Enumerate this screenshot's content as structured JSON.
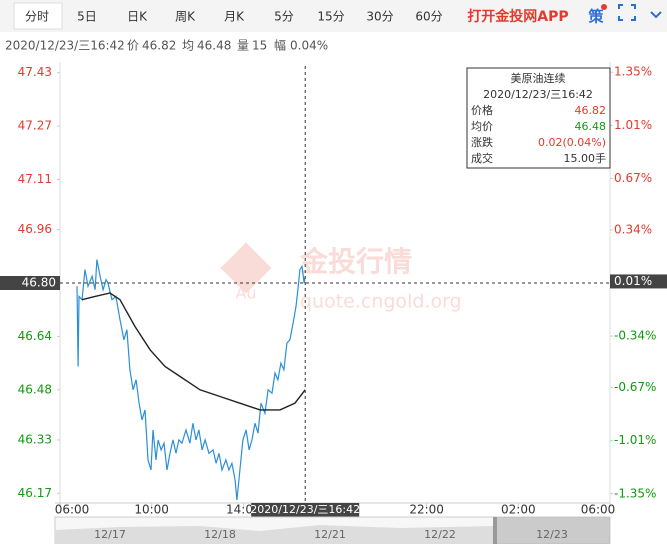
{
  "toolbar": {
    "tabs": [
      "分时",
      "5日",
      "日K",
      "周K",
      "月K",
      "5分",
      "15分",
      "30分",
      "60分"
    ],
    "app_link": "打开金投网APP",
    "strategy": "策"
  },
  "info": {
    "datetime": "2020/12/23/三16:42",
    "price_label": "价",
    "price": 46.82,
    "avg_label": "均",
    "avg": 46.48,
    "volume_label": "量",
    "volume": 15,
    "range_label": "幅",
    "range": "0.04%"
  },
  "tooltip": {
    "title": "美原油连续",
    "datetime": "2020/12/23/三16:42",
    "rows": [
      [
        "价格",
        "46.82"
      ],
      [
        "均价",
        "46.48"
      ],
      [
        "涨跌",
        "0.02(0.04%)"
      ],
      [
        "成交",
        "15.00手"
      ]
    ]
  },
  "watermark": {
    "logo": "Au",
    "brand": "金投行情",
    "url": "quote.cngold.org"
  },
  "navigator": {
    "dates": [
      "12/17",
      "12/18",
      "12/21",
      "12/22",
      "12/23"
    ]
  },
  "chart_data": {
    "type": "line",
    "xlim": [
      0,
      24
    ],
    "xticks": [
      {
        "value": 0,
        "label": "06:00"
      },
      {
        "value": 4,
        "label": "10:00"
      },
      {
        "value": 8,
        "label": "14:00"
      },
      {
        "value": 16,
        "label": "22:00"
      },
      {
        "value": 20,
        "label": "02:00"
      },
      {
        "value": 24,
        "label": "06:00"
      }
    ],
    "ylim": [
      46.15,
      47.45
    ],
    "yticks": [
      47.43,
      47.27,
      47.11,
      46.96,
      46.64,
      46.48,
      46.33,
      46.17
    ],
    "y2lim": [
      -1.39,
      1.39
    ],
    "y2ticks": [
      {
        "value": 1.35,
        "label": "1.35%"
      },
      {
        "value": 1.01,
        "label": "1.01%"
      },
      {
        "value": 0.67,
        "label": "0.67%"
      },
      {
        "value": 0.34,
        "label": "0.34%"
      },
      {
        "value": -0.34,
        "label": "-0.34%"
      },
      {
        "value": -0.67,
        "label": "-0.67%"
      },
      {
        "value": -1.01,
        "label": "-1.01%"
      },
      {
        "value": -1.35,
        "label": "-1.35%"
      }
    ],
    "up_color": "#e23b2e",
    "down_color": "#139a13",
    "crosshair": {
      "x": {
        "value": 10.7,
        "label": "2020/12/23/三16:42"
      },
      "y": {
        "value": 46.8,
        "label": "46.80"
      },
      "y2": {
        "value": 0.01,
        "label": "0.01%"
      }
    },
    "series": [
      {
        "color": "#2b8fd6",
        "x": [
          0.74,
          0.79,
          0.83,
          0.96,
          1.09,
          1.22,
          1.4,
          1.53,
          1.61,
          1.75,
          1.88,
          2.01,
          2.09,
          2.27,
          2.44,
          2.62,
          2.79,
          2.92,
          3.05,
          3.19,
          3.32,
          3.45,
          3.58,
          3.71,
          3.84,
          3.97,
          4.06,
          4.19,
          4.28,
          4.41,
          4.54,
          4.67,
          4.8,
          4.93,
          5.06,
          5.19,
          5.32,
          5.5,
          5.67,
          5.8,
          5.93,
          6.06,
          6.2,
          6.33,
          6.5,
          6.68,
          6.81,
          6.94,
          7.07,
          7.24,
          7.37,
          7.5,
          7.64,
          7.72,
          7.85,
          7.98,
          8.12,
          8.25,
          8.38,
          8.51,
          8.64,
          8.77,
          8.94,
          9.08,
          9.25,
          9.38,
          9.51,
          9.64,
          9.77,
          9.9,
          10.03,
          10.17,
          10.3,
          10.38,
          10.47,
          10.56,
          10.65,
          10.7
        ],
        "values": [
          46.79,
          46.55,
          46.76,
          46.75,
          46.84,
          46.79,
          46.82,
          46.78,
          46.87,
          46.82,
          46.78,
          46.81,
          46.8,
          46.75,
          46.76,
          46.69,
          46.63,
          46.66,
          46.54,
          46.48,
          46.51,
          46.44,
          46.39,
          46.42,
          46.27,
          46.24,
          46.36,
          46.27,
          46.33,
          46.3,
          46.32,
          46.24,
          46.29,
          46.33,
          46.29,
          46.33,
          46.32,
          46.36,
          46.32,
          46.38,
          46.33,
          46.36,
          46.3,
          46.33,
          46.29,
          46.3,
          46.26,
          46.29,
          46.24,
          46.27,
          46.24,
          46.26,
          46.21,
          46.15,
          46.24,
          46.33,
          46.36,
          46.3,
          46.33,
          46.38,
          46.35,
          46.44,
          46.41,
          46.48,
          46.47,
          46.53,
          46.51,
          46.56,
          46.54,
          46.62,
          46.63,
          46.68,
          46.73,
          46.78,
          46.84,
          46.85,
          46.8,
          46.82
        ]
      },
      {
        "color": "#222222",
        "x": [
          0.96,
          1.53,
          2.18,
          2.62,
          3.27,
          3.93,
          4.58,
          5.24,
          6.11,
          6.98,
          7.85,
          8.73,
          9.6,
          10.25,
          10.7
        ],
        "values": [
          46.75,
          46.76,
          46.77,
          46.75,
          46.67,
          46.6,
          46.55,
          46.52,
          46.48,
          46.46,
          46.44,
          46.42,
          46.42,
          46.44,
          46.48
        ]
      }
    ]
  }
}
